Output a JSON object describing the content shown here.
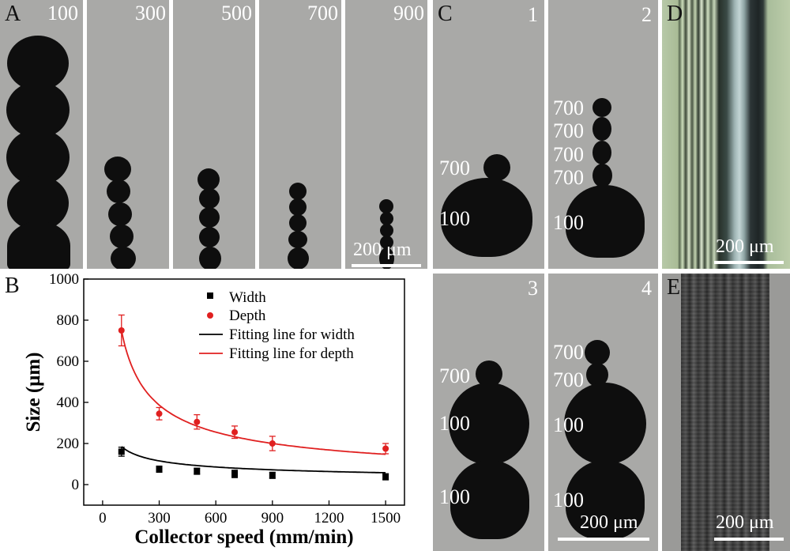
{
  "panels": {
    "A": {
      "label": "A",
      "speeds": [
        "100",
        "300",
        "500",
        "700",
        "900"
      ],
      "scale_bar": "200 μm"
    },
    "B": {
      "label": "B"
    },
    "C": {
      "label": "C",
      "sub": [
        {
          "num": "1",
          "labels": [
            "700",
            "100"
          ]
        },
        {
          "num": "2",
          "labels": [
            "700",
            "700",
            "700",
            "700",
            "100"
          ]
        },
        {
          "num": "3",
          "labels": [
            "700",
            "100",
            "100"
          ]
        },
        {
          "num": "4",
          "labels": [
            "700",
            "700",
            "100",
            "100"
          ],
          "scale_bar": "200 μm"
        }
      ]
    },
    "D": {
      "label": "D",
      "scale_bar": "200 μm"
    },
    "E": {
      "label": "E",
      "scale_bar": "200 μm"
    }
  },
  "chart_data": {
    "type": "scatter",
    "xlabel": "Collector speed (mm/min)",
    "ylabel": "Size (μm)",
    "xlim": [
      -100,
      1600
    ],
    "ylim": [
      -100,
      1000
    ],
    "xticks": [
      "0",
      "300",
      "600",
      "900",
      "1200",
      "1500"
    ],
    "yticks": [
      "0",
      "200",
      "400",
      "600",
      "800",
      "1000"
    ],
    "legend_position": "top-right",
    "series": [
      {
        "name": "Width",
        "color": "#000000",
        "marker": "square",
        "x": [
          100,
          300,
          500,
          700,
          900,
          1500
        ],
        "y": [
          160,
          75,
          65,
          52,
          45,
          38
        ],
        "err": [
          22,
          15,
          15,
          18,
          15,
          15
        ]
      },
      {
        "name": "Depth",
        "color": "#e02020",
        "marker": "circle",
        "x": [
          100,
          300,
          500,
          700,
          900,
          1500
        ],
        "y": [
          750,
          345,
          305,
          255,
          200,
          175
        ],
        "err": [
          75,
          30,
          35,
          30,
          35,
          25
        ]
      }
    ],
    "fits": [
      {
        "name": "Fitting line for width",
        "color": "#000000",
        "coef": 185,
        "power": 0.43
      },
      {
        "name": "Fitting line for depth",
        "color": "#e02020",
        "coef": 748,
        "power": 0.6
      }
    ]
  }
}
